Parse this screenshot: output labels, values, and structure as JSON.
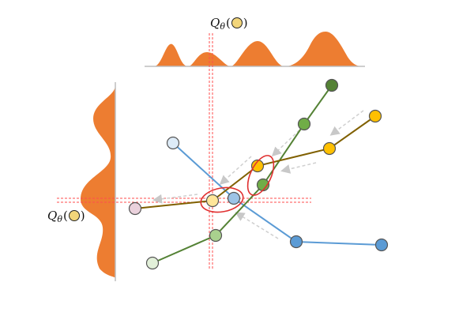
{
  "labels": {
    "top": {
      "q": "Q",
      "sub": "θ",
      "open": "(",
      "close": ")"
    },
    "left": {
      "q": "Q",
      "sub": "θ",
      "open": "(",
      "close": ")"
    }
  },
  "colors": {
    "density": "#ED7D31",
    "axis": "#bdbdbd",
    "guide": "#ff4d4d",
    "blue_line": "#5B9BD5",
    "green_line": "#548235",
    "olive_line": "#806000",
    "highlight": "#e03030",
    "arrow": "#d0d0d0",
    "query_dot": "#f2d57a"
  },
  "icons": {
    "query_marker": "yellow-circle-icon"
  }
}
